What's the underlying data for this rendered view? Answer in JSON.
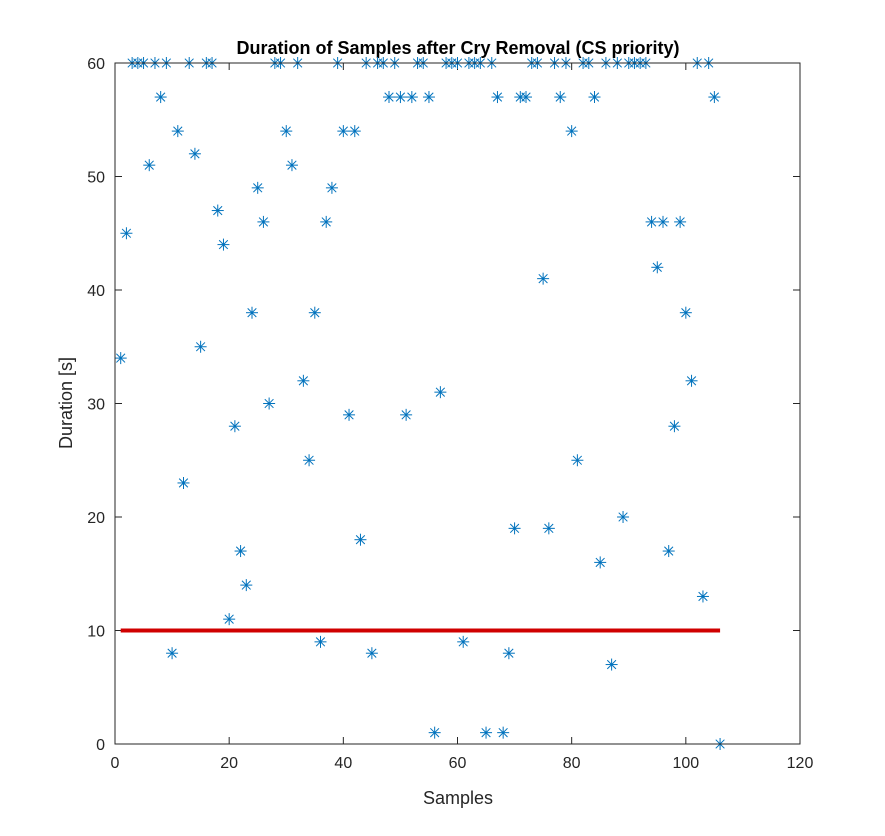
{
  "chart_data": {
    "type": "scatter",
    "title": "Duration of Samples after Cry Removal (CS priority)",
    "xlabel": "Samples",
    "ylabel": "Duration [s]",
    "xlim": [
      0,
      120
    ],
    "ylim": [
      0,
      60
    ],
    "xticks": [
      "0",
      "20",
      "40",
      "60",
      "80",
      "100",
      "120"
    ],
    "yticks": [
      "0",
      "10",
      "20",
      "30",
      "40",
      "50",
      "60"
    ],
    "grid": false,
    "marker": "asterisk",
    "marker_color": "#0072BD",
    "threshold_line": {
      "y": 10,
      "x_range": [
        1,
        106
      ],
      "color": "#D00000"
    },
    "x": [
      1,
      2,
      3,
      4,
      5,
      6,
      7,
      8,
      9,
      10,
      11,
      12,
      13,
      14,
      15,
      16,
      17,
      18,
      19,
      20,
      21,
      22,
      23,
      24,
      25,
      26,
      27,
      28,
      29,
      30,
      31,
      32,
      33,
      34,
      35,
      36,
      37,
      38,
      39,
      40,
      41,
      42,
      43,
      44,
      45,
      46,
      47,
      48,
      49,
      50,
      51,
      52,
      53,
      54,
      55,
      56,
      57,
      58,
      59,
      60,
      61,
      62,
      63,
      64,
      65,
      66,
      67,
      68,
      69,
      70,
      71,
      72,
      73,
      74,
      75,
      76,
      77,
      78,
      79,
      80,
      81,
      82,
      83,
      84,
      85,
      86,
      87,
      88,
      89,
      90,
      91,
      92,
      93,
      94,
      95,
      96,
      97,
      98,
      99,
      100,
      101,
      102,
      103,
      104,
      105,
      106
    ],
    "y": [
      34,
      45,
      60,
      60,
      60,
      51,
      60,
      57,
      60,
      8,
      54,
      23,
      60,
      52,
      35,
      60,
      60,
      47,
      44,
      11,
      28,
      17,
      14,
      38,
      49,
      46,
      30,
      60,
      60,
      54,
      51,
      60,
      32,
      25,
      38,
      9,
      46,
      49,
      60,
      54,
      29,
      54,
      18,
      60,
      8,
      60,
      60,
      57,
      60,
      57,
      29,
      57,
      60,
      60,
      57,
      1,
      31,
      60,
      60,
      60,
      9,
      60,
      60,
      60,
      1,
      60,
      57,
      1,
      8,
      19,
      57,
      57,
      60,
      60,
      41,
      19,
      60,
      57,
      60,
      54,
      25,
      60,
      60,
      57,
      16,
      60,
      7,
      60,
      20,
      60,
      60,
      60,
      60,
      46,
      42,
      46,
      17,
      28,
      46,
      38,
      32,
      60,
      13,
      60,
      57,
      0
    ]
  }
}
